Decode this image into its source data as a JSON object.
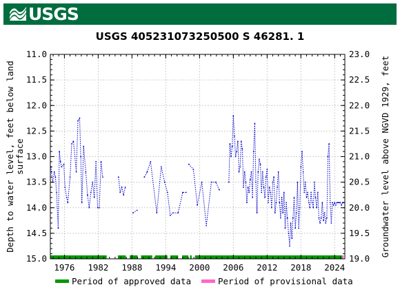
{
  "header": {
    "logo_text": "USGS",
    "logo_icon": "usgs-wave-icon",
    "color": "#006d3e"
  },
  "chart_data": {
    "type": "line",
    "title": "USGS 405231073250500 S 46281. 1",
    "ylabel_left": "Depth to water level, feet below land surface",
    "ylabel_right": "Groundwater level above NGVD 1929, feet",
    "yleft_lim": [
      15.0,
      11.0
    ],
    "yleft_ticks": [
      "11.0",
      "11.5",
      "12.0",
      "12.5",
      "13.0",
      "13.5",
      "14.0",
      "14.5",
      "15.0"
    ],
    "yright_lim": [
      19.0,
      23.0
    ],
    "yright_ticks": [
      "19.0",
      "19.5",
      "20.0",
      "20.5",
      "21.0",
      "21.5",
      "22.0",
      "22.5",
      "23.0"
    ],
    "xlim": [
      1973.5,
      2025.8
    ],
    "x_ticks": [
      "1976",
      "1982",
      "1988",
      "1994",
      "2000",
      "2006",
      "2012",
      "2018",
      "2024"
    ],
    "grid": true,
    "line_color": "#0000cc",
    "series": [
      {
        "x": [
          1973.6,
          1973.9,
          1974.2,
          1974.4,
          1974.6,
          1974.9,
          1975.1,
          1975.3,
          1975.5,
          1975.9,
          1976.1,
          1976.4,
          1976.6,
          1977.0,
          1977.3,
          1977.6,
          1978.1,
          1978.4,
          1978.7,
          1978.9,
          1979.1,
          1979.4,
          1979.8,
          1980.1,
          1980.4,
          1980.7,
          1981.0,
          1981.3,
          1981.6,
          1981.9,
          1982.2,
          1982.5,
          1982.8
        ],
        "y": [
          13.2,
          13.5,
          13.3,
          13.4,
          13.7,
          14.4,
          12.9,
          13.1,
          13.2,
          13.15,
          13.6,
          13.8,
          13.9,
          13.4,
          12.75,
          12.7,
          13.3,
          12.3,
          12.25,
          13.0,
          13.9,
          12.8,
          13.3,
          13.75,
          14.0,
          13.7,
          13.5,
          13.8,
          13.1,
          14.0,
          14.0,
          13.1,
          13.4
        ]
      },
      {
        "x": [
          1985.6,
          1985.9,
          1986.2,
          1986.5,
          1986.8
        ],
        "y": [
          13.4,
          13.7,
          13.6,
          13.75,
          13.6
        ]
      },
      {
        "x": [
          1988.2,
          1988.9
        ],
        "y": [
          14.1,
          14.05
        ]
      },
      {
        "x": [
          1990.2,
          1990.7,
          1991.3,
          1992.4,
          1993.2,
          1993.8,
          1994.3,
          1994.8,
          1995.3,
          1996.2,
          1997.0,
          1997.6
        ],
        "y": [
          13.4,
          13.3,
          13.1,
          14.1,
          13.2,
          13.5,
          13.7,
          14.15,
          14.1,
          14.1,
          13.7,
          13.7
        ]
      },
      {
        "x": [
          1998.1,
          1998.9,
          1999.6,
          2000.4,
          2001.2,
          2002.1,
          2002.9,
          2003.5
        ],
        "y": [
          13.15,
          13.25,
          13.95,
          13.5,
          14.35,
          13.5,
          13.5,
          13.65
        ]
      },
      {
        "x": [
          2005.2,
          2005.4,
          2005.6,
          2005.8,
          2006.0,
          2006.2,
          2006.4,
          2006.6,
          2006.8,
          2007.0,
          2007.2,
          2007.4,
          2007.6,
          2007.8,
          2008.0,
          2008.2,
          2008.4,
          2008.6,
          2008.8,
          2009.0,
          2009.2,
          2009.4,
          2009.6,
          2009.8,
          2010.0,
          2010.2,
          2010.4,
          2010.6,
          2010.8,
          2011.0,
          2011.2,
          2011.4,
          2011.6,
          2011.8,
          2012.0,
          2012.2,
          2012.4,
          2012.6,
          2012.8,
          2013.0,
          2013.2,
          2013.4,
          2013.6,
          2013.8,
          2014.0,
          2014.2,
          2014.4,
          2014.6,
          2014.8,
          2015.0,
          2015.2,
          2015.4,
          2015.6,
          2015.8,
          2016.0,
          2016.2,
          2016.4,
          2016.6,
          2016.8,
          2017.0,
          2017.2,
          2017.4,
          2017.6,
          2017.8,
          2018.0,
          2018.2,
          2018.4,
          2018.6,
          2018.8,
          2019.0,
          2019.2,
          2019.4,
          2019.6,
          2019.8,
          2020.0,
          2020.2,
          2020.4,
          2020.6,
          2020.8,
          2021.0,
          2021.2,
          2021.4,
          2021.6,
          2021.8,
          2022.0,
          2022.2,
          2022.4,
          2022.6,
          2022.8,
          2023.0,
          2023.2,
          2023.4,
          2023.6,
          2023.8,
          2024.0,
          2024.2,
          2024.4,
          2024.6,
          2024.8,
          2025.0,
          2025.2,
          2025.4,
          2025.6
        ],
        "y": [
          13.5,
          12.75,
          13.0,
          12.8,
          12.2,
          12.6,
          13.0,
          12.9,
          12.7,
          13.3,
          13.2,
          12.7,
          12.85,
          13.6,
          13.3,
          13.5,
          13.9,
          13.6,
          13.7,
          13.45,
          13.3,
          13.8,
          12.9,
          12.35,
          13.5,
          14.1,
          13.3,
          13.05,
          13.15,
          13.7,
          13.3,
          13.6,
          13.8,
          13.4,
          13.25,
          13.9,
          13.6,
          13.7,
          14.0,
          13.5,
          13.4,
          14.1,
          13.9,
          13.6,
          13.3,
          13.9,
          14.2,
          13.8,
          14.1,
          13.7,
          14.4,
          13.9,
          14.2,
          14.5,
          14.75,
          14.3,
          14.6,
          14.2,
          13.8,
          14.4,
          14.1,
          13.5,
          14.4,
          14.0,
          13.2,
          12.9,
          13.3,
          13.7,
          13.5,
          13.8,
          13.7,
          13.9,
          14.0,
          13.7,
          13.9,
          14.0,
          13.5,
          13.8,
          14.0,
          13.7,
          14.2,
          14.3,
          14.2,
          13.9,
          14.25,
          14.1,
          14.3,
          14.2,
          13.0,
          12.75,
          13.9,
          14.3,
          13.9,
          13.95,
          13.9,
          13.95,
          13.9,
          13.9,
          13.9,
          13.9,
          13.95,
          13.9,
          13.9
        ]
      }
    ],
    "approved_periods": [
      [
        1973.5,
        1983.5
      ],
      [
        1985.5,
        1986.9
      ],
      [
        1987.6,
        1989.0
      ],
      [
        1989.6,
        1991.6
      ],
      [
        1992.1,
        1994.3
      ],
      [
        1994.8,
        1996.2
      ],
      [
        1996.9,
        1998.0
      ],
      [
        1998.3,
        1998.6
      ],
      [
        1999.2,
        2025.3
      ]
    ],
    "provisional_periods": [
      [
        2025.3,
        2025.6
      ]
    ],
    "legend": {
      "approved_label": "Period of approved data",
      "approved_color": "#009900",
      "provisional_label": "Period of provisional data",
      "provisional_color": "#ff66cc"
    }
  }
}
